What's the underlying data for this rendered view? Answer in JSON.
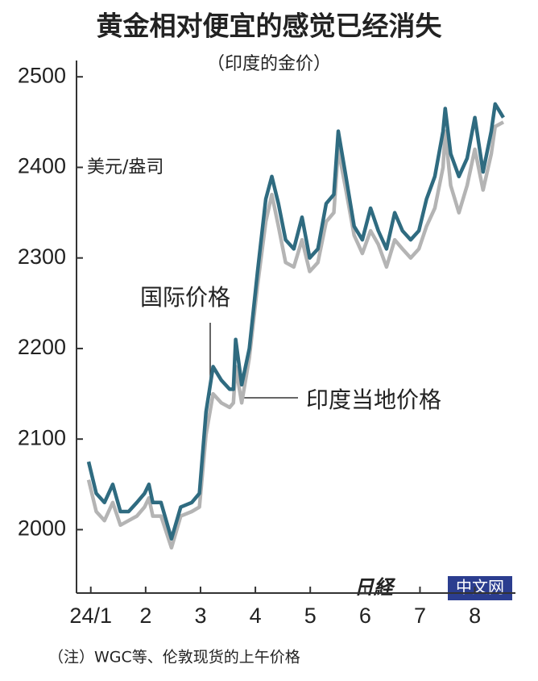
{
  "chart_data": {
    "type": "line",
    "title": "黄金相对便宜的感觉已经消失",
    "subtitle": "（印度的金价）",
    "y_unit": "美元/盎司",
    "note": "（注）WGC等、伦敦现货的上午价格",
    "logo": {
      "mark": "日経",
      "text": "中文网"
    },
    "x": [
      0.96,
      1.1,
      1.25,
      1.4,
      1.54,
      1.69,
      1.84,
      1.98,
      2.06,
      2.13,
      2.28,
      2.47,
      2.64,
      2.84,
      2.98,
      3.1,
      3.23,
      3.38,
      3.53,
      3.6,
      3.64,
      3.75,
      3.89,
      4.04,
      4.19,
      4.3,
      4.42,
      4.55,
      4.7,
      4.85,
      4.99,
      5.14,
      5.29,
      5.43,
      5.51,
      5.65,
      5.8,
      5.95,
      6.1,
      6.24,
      6.39,
      6.54,
      6.68,
      6.83,
      6.98,
      7.12,
      7.27,
      7.42,
      7.46,
      7.56,
      7.71,
      7.86,
      8.0,
      8.15,
      8.3,
      8.37,
      8.52
    ],
    "series": [
      {
        "name": "印度当地价格",
        "color": "#b4b4b4",
        "values": [
          2055,
          2020,
          2010,
          2030,
          2005,
          2010,
          2015,
          2025,
          2035,
          2015,
          2015,
          1980,
          2015,
          2020,
          2025,
          2105,
          2150,
          2140,
          2135,
          2140,
          2180,
          2140,
          2190,
          2270,
          2340,
          2370,
          2335,
          2295,
          2290,
          2320,
          2285,
          2295,
          2340,
          2350,
          2420,
          2375,
          2325,
          2305,
          2330,
          2315,
          2290,
          2320,
          2310,
          2300,
          2310,
          2335,
          2355,
          2400,
          2440,
          2380,
          2350,
          2380,
          2420,
          2375,
          2415,
          2445,
          2450
        ]
      },
      {
        "name": "国际价格",
        "color": "#2f6b80",
        "values": [
          2075,
          2040,
          2030,
          2050,
          2020,
          2020,
          2030,
          2040,
          2050,
          2030,
          2030,
          1990,
          2025,
          2030,
          2040,
          2130,
          2180,
          2165,
          2155,
          2155,
          2210,
          2160,
          2200,
          2285,
          2365,
          2390,
          2360,
          2320,
          2310,
          2345,
          2300,
          2310,
          2360,
          2370,
          2440,
          2390,
          2335,
          2320,
          2355,
          2330,
          2310,
          2350,
          2330,
          2320,
          2330,
          2365,
          2390,
          2440,
          2465,
          2415,
          2390,
          2410,
          2455,
          2395,
          2440,
          2470,
          2455
        ]
      }
    ],
    "xlim": [
      0.74,
      8.74
    ],
    "xticks": [
      {
        "value": 1,
        "label": "24/1"
      },
      2,
      3,
      4,
      5,
      6,
      7,
      8
    ],
    "ylim": [
      1930,
      2518
    ],
    "yticks": [
      2000,
      2100,
      2200,
      2300,
      2400,
      2500
    ],
    "grid": false
  }
}
